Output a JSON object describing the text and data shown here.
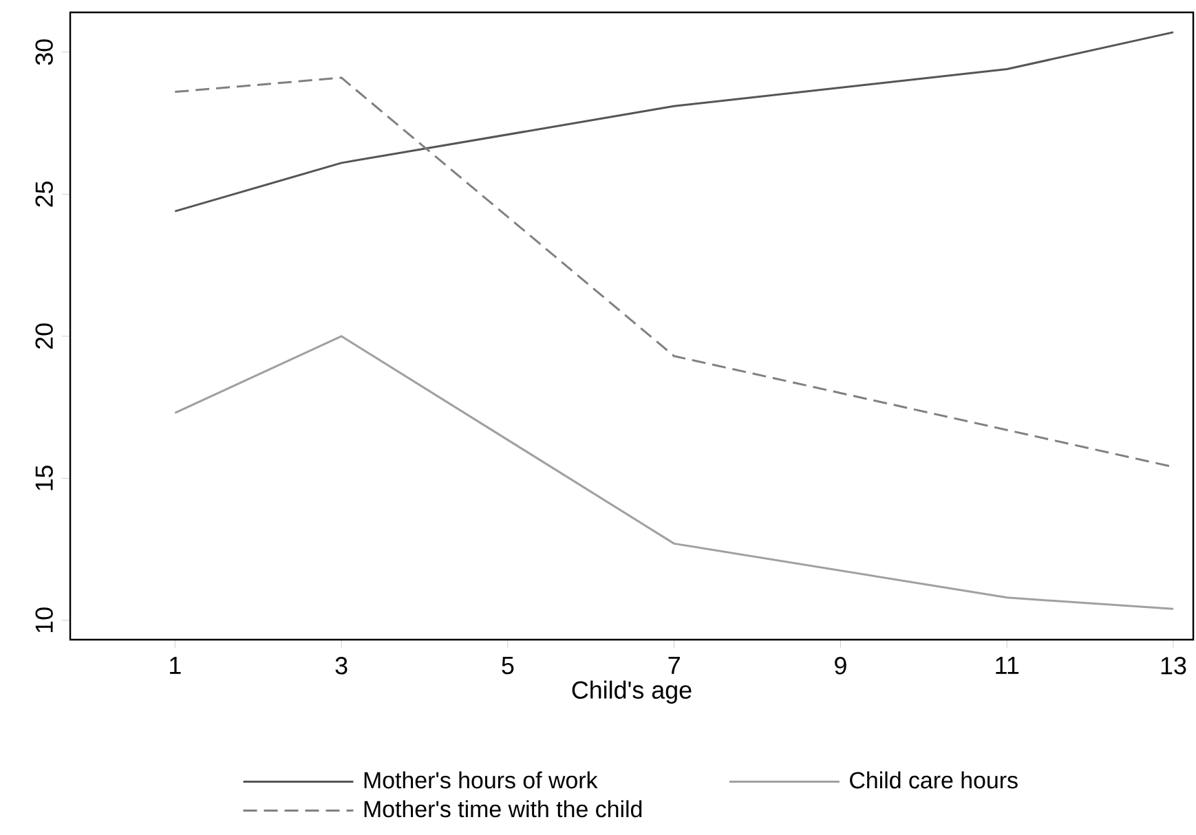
{
  "chart_data": {
    "type": "line",
    "xlabel": "Child's age",
    "x": [
      1,
      3,
      7,
      11,
      13
    ],
    "series": [
      {
        "name": "Mother's hours of work",
        "color": "#555555",
        "line_style": "solid",
        "values": [
          24.4,
          26.1,
          28.1,
          29.4,
          30.7
        ]
      },
      {
        "name": "Child care hours",
        "color": "#a0a0a0",
        "line_style": "solid",
        "values": [
          17.3,
          20.0,
          12.7,
          10.8,
          10.4
        ]
      },
      {
        "name": "Mother's time with the child",
        "color": "#808080",
        "line_style": "dashed",
        "values": [
          28.6,
          29.1,
          19.3,
          16.7,
          15.4
        ]
      }
    ],
    "xlim": [
      -0.26,
      13.24
    ],
    "ylim": [
      9.32,
      31.4
    ],
    "xticks": [
      1,
      3,
      5,
      7,
      9,
      11,
      13
    ],
    "yticks": [
      10,
      15,
      20,
      25,
      30
    ],
    "grid": false,
    "legend": "bottom",
    "marker": "none"
  }
}
